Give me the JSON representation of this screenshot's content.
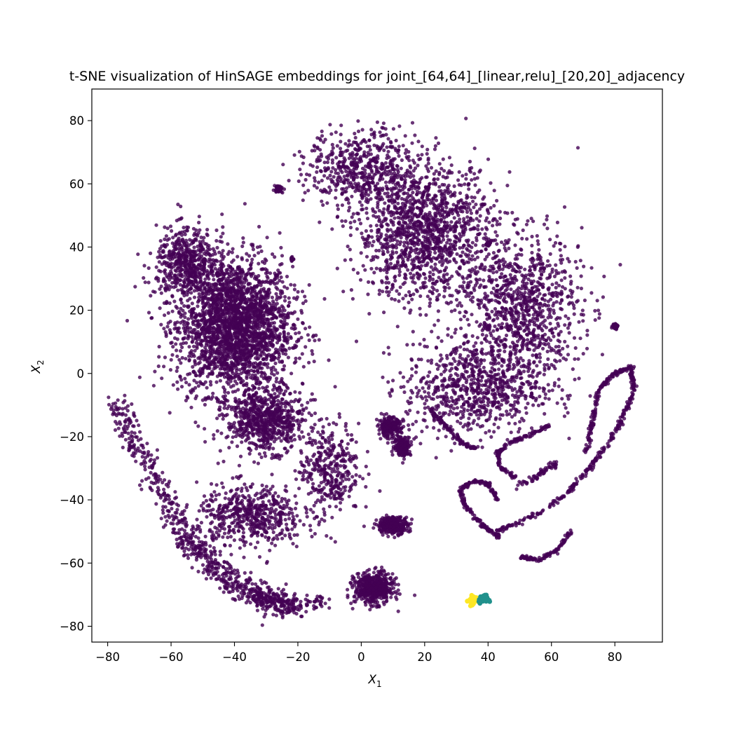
{
  "chart_data": {
    "type": "scatter",
    "title": "t-SNE visualization of HinSAGE embeddings for joint_[64,64]_[linear,relu]_[20,20]_adjacency",
    "xlabel": "X",
    "xlabel_sub": "1",
    "ylabel": "X",
    "ylabel_sub": "2",
    "xlim": [
      -85,
      95
    ],
    "ylim": [
      -85,
      90
    ],
    "xticks": [
      -80,
      -60,
      -40,
      -20,
      0,
      20,
      40,
      60,
      80
    ],
    "yticks": [
      -80,
      -60,
      -40,
      -20,
      0,
      20,
      40,
      60,
      80
    ],
    "xtick_labels": [
      "−80",
      "−60",
      "−40",
      "−20",
      "0",
      "20",
      "40",
      "60",
      "80"
    ],
    "ytick_labels": [
      "−80",
      "−60",
      "−40",
      "−20",
      "0",
      "20",
      "40",
      "60",
      "80"
    ],
    "grid": false,
    "legend": "none",
    "colors": {
      "main": "#440154",
      "teal": "#21918c",
      "yellow": "#fde725"
    },
    "clusters": [
      {
        "color": "main",
        "shape": "blob",
        "center": [
          -40,
          15
        ],
        "spread": [
          15,
          18
        ],
        "count": 2600
      },
      {
        "color": "main",
        "shape": "blob",
        "center": [
          -55,
          35
        ],
        "spread": [
          8,
          9
        ],
        "count": 500
      },
      {
        "color": "main",
        "shape": "blob",
        "center": [
          -30,
          -15
        ],
        "spread": [
          10,
          8
        ],
        "count": 700
      },
      {
        "color": "main",
        "shape": "blob",
        "center": [
          20,
          45
        ],
        "spread": [
          18,
          18
        ],
        "count": 1400
      },
      {
        "color": "main",
        "shape": "blob",
        "center": [
          50,
          20
        ],
        "spread": [
          16,
          20
        ],
        "count": 1000
      },
      {
        "color": "main",
        "shape": "blob",
        "center": [
          0,
          65
        ],
        "spread": [
          14,
          10
        ],
        "count": 500
      },
      {
        "color": "main",
        "shape": "blob",
        "center": [
          35,
          -5
        ],
        "spread": [
          18,
          12
        ],
        "count": 700
      },
      {
        "color": "main",
        "shape": "blob",
        "center": [
          -10,
          -30
        ],
        "spread": [
          8,
          12
        ],
        "count": 350
      },
      {
        "color": "main",
        "shape": "blob",
        "center": [
          -35,
          -45
        ],
        "spread": [
          14,
          8
        ],
        "count": 550
      },
      {
        "color": "main",
        "shape": "blob",
        "center": [
          4,
          -68
        ],
        "spread": [
          5,
          4
        ],
        "count": 550
      },
      {
        "color": "main",
        "shape": "blob",
        "center": [
          10,
          -48
        ],
        "spread": [
          4,
          2.2
        ],
        "count": 320
      },
      {
        "color": "main",
        "shape": "blob",
        "center": [
          -26,
          58.5
        ],
        "spread": [
          1.2,
          1
        ],
        "count": 40
      },
      {
        "color": "main",
        "shape": "blob",
        "center": [
          80,
          15
        ],
        "spread": [
          0.8,
          0.8
        ],
        "count": 30
      },
      {
        "color": "main",
        "shape": "blob",
        "center": [
          40,
          41
        ],
        "spread": [
          0.7,
          0.7
        ],
        "count": 20
      },
      {
        "color": "main",
        "shape": "blob",
        "center": [
          -22,
          36
        ],
        "spread": [
          0.5,
          0.5
        ],
        "count": 10
      },
      {
        "color": "main",
        "shape": "blob",
        "center": [
          9,
          -17
        ],
        "spread": [
          3,
          2.5
        ],
        "count": 220
      },
      {
        "color": "main",
        "shape": "blob",
        "center": [
          13,
          -23
        ],
        "spread": [
          2.2,
          2.6
        ],
        "count": 180
      },
      {
        "color": "main",
        "shape": "path",
        "points": [
          [
            -77,
            -10
          ],
          [
            -70,
            -25
          ],
          [
            -62,
            -40
          ],
          [
            -55,
            -52
          ],
          [
            -48,
            -60
          ],
          [
            -40,
            -66
          ],
          [
            -30,
            -72
          ],
          [
            -22,
            -73
          ]
        ],
        "jitter": 2.2,
        "count": 650
      },
      {
        "color": "main",
        "shape": "path",
        "points": [
          [
            -35,
            -68
          ],
          [
            -28,
            -72
          ],
          [
            -20,
            -74
          ],
          [
            -12,
            -72
          ]
        ],
        "jitter": 1.5,
        "count": 140
      },
      {
        "color": "main",
        "shape": "path",
        "points": [
          [
            42,
            -50
          ],
          [
            55,
            -45
          ],
          [
            65,
            -38
          ],
          [
            72,
            -30
          ],
          [
            78,
            -22
          ],
          [
            82,
            -15
          ],
          [
            86,
            -5
          ],
          [
            85,
            2
          ],
          [
            80,
            0
          ],
          [
            75,
            -5
          ],
          [
            73,
            -15
          ],
          [
            71,
            -25
          ]
        ],
        "jitter": 0.35,
        "count": 420
      },
      {
        "color": "main",
        "shape": "path",
        "points": [
          [
            44,
            -52
          ],
          [
            38,
            -48
          ],
          [
            33,
            -42
          ],
          [
            31,
            -37
          ],
          [
            35,
            -34
          ],
          [
            40,
            -35
          ],
          [
            43,
            -40
          ]
        ],
        "jitter": 0.35,
        "count": 200
      },
      {
        "color": "main",
        "shape": "path",
        "points": [
          [
            49,
            -33
          ],
          [
            44,
            -30
          ],
          [
            43,
            -25
          ],
          [
            47,
            -22
          ],
          [
            54,
            -19
          ],
          [
            60,
            -16
          ]
        ],
        "jitter": 0.3,
        "count": 140
      },
      {
        "color": "main",
        "shape": "path",
        "points": [
          [
            49,
            -36
          ],
          [
            56,
            -32
          ],
          [
            62,
            -28
          ]
        ],
        "jitter": 0.5,
        "count": 60
      },
      {
        "color": "main",
        "shape": "path",
        "points": [
          [
            20,
            -10
          ],
          [
            24,
            -14
          ],
          [
            28,
            -18
          ],
          [
            32,
            -22
          ],
          [
            36,
            -24
          ]
        ],
        "jitter": 0.3,
        "count": 110
      },
      {
        "color": "main",
        "shape": "path",
        "points": [
          [
            50,
            -58
          ],
          [
            56,
            -59
          ],
          [
            62,
            -56
          ],
          [
            66,
            -50
          ]
        ],
        "jitter": 0.35,
        "count": 100
      },
      {
        "color": "yellow",
        "shape": "blob",
        "center": [
          35,
          -72
        ],
        "spread": [
          1.1,
          1.5
        ],
        "count": 35
      },
      {
        "color": "teal",
        "shape": "blob",
        "center": [
          38.5,
          -71.5
        ],
        "spread": [
          1.2,
          1.1
        ],
        "count": 35
      }
    ]
  }
}
